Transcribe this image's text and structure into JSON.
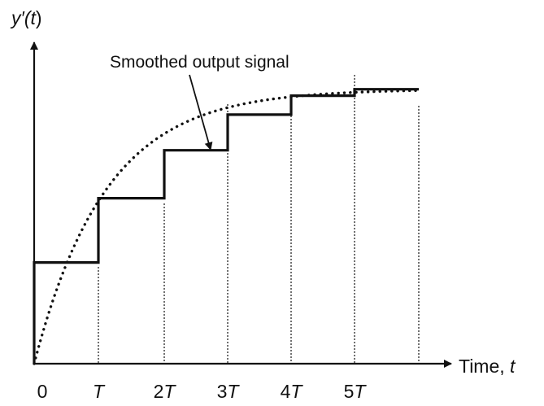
{
  "diagram": {
    "y_axis_label": {
      "main": "y′(",
      "var": "t",
      "close": ")"
    },
    "x_axis_label": {
      "main": "Time, ",
      "var": "t"
    },
    "annotation": "Smoothed output signal",
    "ticks": [
      {
        "coef": "0",
        "sym": ""
      },
      {
        "coef": "",
        "sym": "T"
      },
      {
        "coef": "2",
        "sym": "T"
      },
      {
        "coef": "3",
        "sym": "T"
      },
      {
        "coef": "4",
        "sym": "T"
      },
      {
        "coef": "5",
        "sym": "T"
      }
    ],
    "staircase_levels": [
      0.315,
      0.515,
      0.664,
      0.775,
      0.834,
      0.854
    ],
    "smoothed_final_level": 0.854,
    "colors": {
      "line": "#111111",
      "background": "#ffffff"
    }
  }
}
